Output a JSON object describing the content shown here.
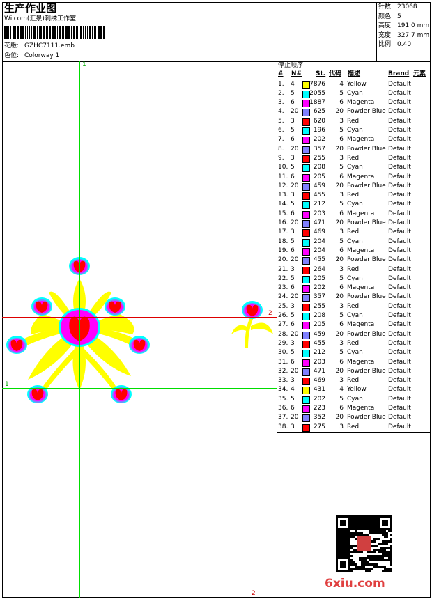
{
  "header": {
    "title": "生产作业图",
    "company": "Wilcom(汇泉)刺绣工作室",
    "design_label": "花版:",
    "design": "GZHC7111.emb",
    "colorway_label": "色位:",
    "colorway": "Colorway 1"
  },
  "stats": [
    {
      "label": "针数:",
      "value": "23068"
    },
    {
      "label": "颜色:",
      "value": "5"
    },
    {
      "label": "高度:",
      "value": "191.0 mm"
    },
    {
      "label": "宽度:",
      "value": "327.7 mm"
    },
    {
      "label": "比例:",
      "value": "0.40"
    }
  ],
  "guides": {
    "green_vertical": "1",
    "green_horizontal": "1",
    "red_vertical": "2",
    "red_horizontal": "2"
  },
  "stops": {
    "title": "停止顺序:",
    "headers": [
      "#",
      "N#",
      "St.",
      "代码",
      "描述",
      "Brand",
      "元素"
    ],
    "palette": {
      "Yellow": "#ffff00",
      "Cyan": "#00ffff",
      "Magenta": "#ff00ff",
      "Powder Blue": "#8080ff",
      "Red": "#ff0000"
    },
    "rows": [
      [
        "1.",
        "4",
        "7876",
        "4",
        "Yellow",
        "Default"
      ],
      [
        "2.",
        "5",
        "2055",
        "5",
        "Cyan",
        "Default"
      ],
      [
        "3.",
        "6",
        "1887",
        "6",
        "Magenta",
        "Default"
      ],
      [
        "4.",
        "20",
        "625",
        "20",
        "Powder Blue",
        "Default"
      ],
      [
        "5.",
        "3",
        "620",
        "3",
        "Red",
        "Default"
      ],
      [
        "6.",
        "5",
        "196",
        "5",
        "Cyan",
        "Default"
      ],
      [
        "7.",
        "6",
        "202",
        "6",
        "Magenta",
        "Default"
      ],
      [
        "8.",
        "20",
        "357",
        "20",
        "Powder Blue",
        "Default"
      ],
      [
        "9.",
        "3",
        "255",
        "3",
        "Red",
        "Default"
      ],
      [
        "10.",
        "5",
        "208",
        "5",
        "Cyan",
        "Default"
      ],
      [
        "11.",
        "6",
        "205",
        "6",
        "Magenta",
        "Default"
      ],
      [
        "12.",
        "20",
        "459",
        "20",
        "Powder Blue",
        "Default"
      ],
      [
        "13.",
        "3",
        "455",
        "3",
        "Red",
        "Default"
      ],
      [
        "14.",
        "5",
        "212",
        "5",
        "Cyan",
        "Default"
      ],
      [
        "15.",
        "6",
        "203",
        "6",
        "Magenta",
        "Default"
      ],
      [
        "16.",
        "20",
        "471",
        "20",
        "Powder Blue",
        "Default"
      ],
      [
        "17.",
        "3",
        "469",
        "3",
        "Red",
        "Default"
      ],
      [
        "18.",
        "5",
        "204",
        "5",
        "Cyan",
        "Default"
      ],
      [
        "19.",
        "6",
        "204",
        "6",
        "Magenta",
        "Default"
      ],
      [
        "20.",
        "20",
        "455",
        "20",
        "Powder Blue",
        "Default"
      ],
      [
        "21.",
        "3",
        "264",
        "3",
        "Red",
        "Default"
      ],
      [
        "22.",
        "5",
        "205",
        "5",
        "Cyan",
        "Default"
      ],
      [
        "23.",
        "6",
        "202",
        "6",
        "Magenta",
        "Default"
      ],
      [
        "24.",
        "20",
        "357",
        "20",
        "Powder Blue",
        "Default"
      ],
      [
        "25.",
        "3",
        "255",
        "3",
        "Red",
        "Default"
      ],
      [
        "26.",
        "5",
        "208",
        "5",
        "Cyan",
        "Default"
      ],
      [
        "27.",
        "6",
        "205",
        "6",
        "Magenta",
        "Default"
      ],
      [
        "28.",
        "20",
        "459",
        "20",
        "Powder Blue",
        "Default"
      ],
      [
        "29.",
        "3",
        "455",
        "3",
        "Red",
        "Default"
      ],
      [
        "30.",
        "5",
        "212",
        "5",
        "Cyan",
        "Default"
      ],
      [
        "31.",
        "6",
        "203",
        "6",
        "Magenta",
        "Default"
      ],
      [
        "32.",
        "20",
        "471",
        "20",
        "Powder Blue",
        "Default"
      ],
      [
        "33.",
        "3",
        "469",
        "3",
        "Red",
        "Default"
      ],
      [
        "34.",
        "4",
        "431",
        "4",
        "Yellow",
        "Default"
      ],
      [
        "35.",
        "5",
        "202",
        "5",
        "Cyan",
        "Default"
      ],
      [
        "36.",
        "6",
        "223",
        "6",
        "Magenta",
        "Default"
      ],
      [
        "37.",
        "20",
        "352",
        "20",
        "Powder Blue",
        "Default"
      ],
      [
        "38.",
        "3",
        "275",
        "3",
        "Red",
        "Default"
      ]
    ]
  },
  "watermark": "6xiu.com"
}
